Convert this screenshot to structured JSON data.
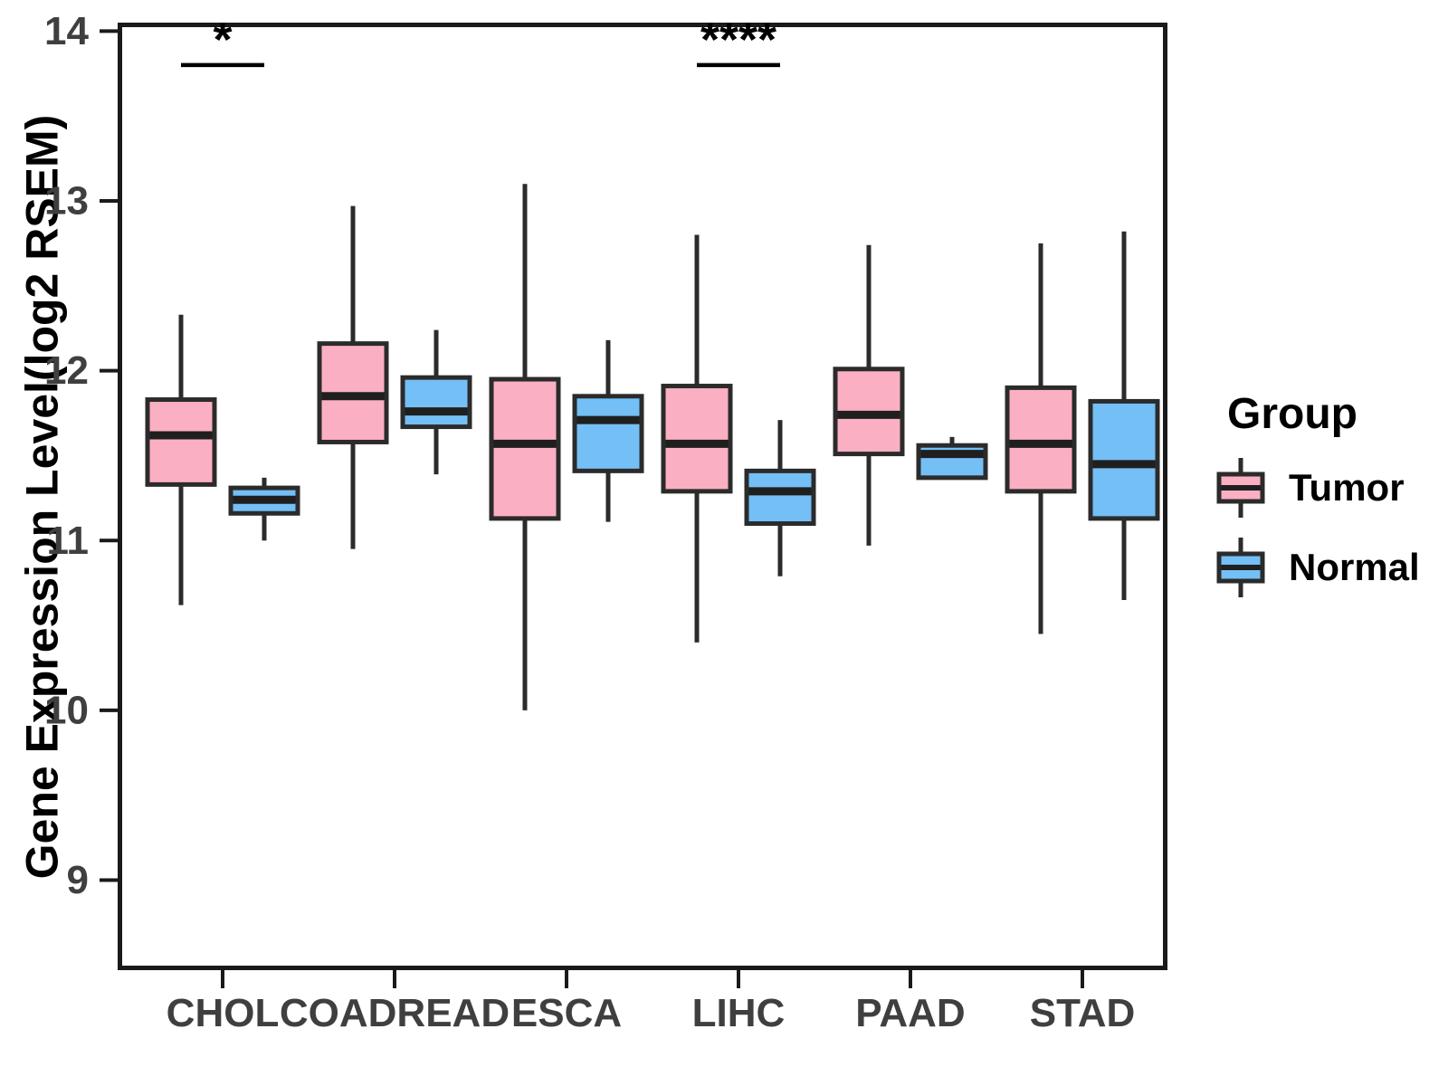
{
  "chart_data": {
    "type": "boxplot",
    "title": "",
    "xlabel": "",
    "ylabel": "Gene Expression Level(log2 RSEM)",
    "categories": [
      "CHOL",
      "COADREAD",
      "ESCA",
      "LIHC",
      "PAAD",
      "STAD"
    ],
    "y_ticks": [
      14,
      13,
      12,
      11,
      10,
      9
    ],
    "ylim": [
      8.47,
      14.05
    ],
    "grid": "off",
    "legend_position": "right",
    "colors": {
      "tumor_fill": "#FBAFC2",
      "normal_fill": "#74BFF5",
      "box_stroke": "#2b2b2b",
      "median_stroke": "#1f1f1f",
      "axis_stroke": "#1a1a1a",
      "tick_label_color": "#3f3f3f"
    },
    "series": [
      {
        "name": "Tumor",
        "color": "#FBAFC2",
        "boxes": [
          {
            "category": "CHOL",
            "low": 10.62,
            "q1": 11.33,
            "median": 11.62,
            "q3": 11.83,
            "high": 12.33
          },
          {
            "category": "COADREAD",
            "low": 10.95,
            "q1": 11.58,
            "median": 11.85,
            "q3": 12.16,
            "high": 12.97
          },
          {
            "category": "ESCA",
            "low": 10.0,
            "q1": 11.13,
            "median": 11.57,
            "q3": 11.95,
            "high": 13.1
          },
          {
            "category": "LIHC",
            "low": 10.4,
            "q1": 11.29,
            "median": 11.57,
            "q3": 11.91,
            "high": 12.8
          },
          {
            "category": "PAAD",
            "low": 10.97,
            "q1": 11.51,
            "median": 11.74,
            "q3": 12.01,
            "high": 12.74
          },
          {
            "category": "STAD",
            "low": 10.45,
            "q1": 11.29,
            "median": 11.57,
            "q3": 11.9,
            "high": 12.75
          }
        ]
      },
      {
        "name": "Normal",
        "color": "#74BFF5",
        "boxes": [
          {
            "category": "CHOL",
            "low": 11.0,
            "q1": 11.16,
            "median": 11.24,
            "q3": 11.31,
            "high": 11.37
          },
          {
            "category": "COADREAD",
            "low": 11.39,
            "q1": 11.67,
            "median": 11.76,
            "q3": 11.96,
            "high": 12.24
          },
          {
            "category": "ESCA",
            "low": 11.11,
            "q1": 11.41,
            "median": 11.71,
            "q3": 11.85,
            "high": 12.18
          },
          {
            "category": "LIHC",
            "low": 10.79,
            "q1": 11.1,
            "median": 11.29,
            "q3": 11.41,
            "high": 11.71
          },
          {
            "category": "PAAD",
            "low": 11.37,
            "q1": 11.37,
            "median": 11.51,
            "q3": 11.56,
            "high": 11.61
          },
          {
            "category": "STAD",
            "low": 10.65,
            "q1": 11.13,
            "median": 11.45,
            "q3": 11.82,
            "high": 12.82
          }
        ]
      }
    ],
    "annotations": [
      {
        "category": "CHOL",
        "label": "*",
        "y": 13.8
      },
      {
        "category": "LIHC",
        "label": "****",
        "y": 13.8
      }
    ],
    "legend": {
      "title": "Group",
      "items": [
        {
          "label": "Tumor",
          "color": "#FBAFC2"
        },
        {
          "label": "Normal",
          "color": "#74BFF5"
        }
      ]
    }
  }
}
